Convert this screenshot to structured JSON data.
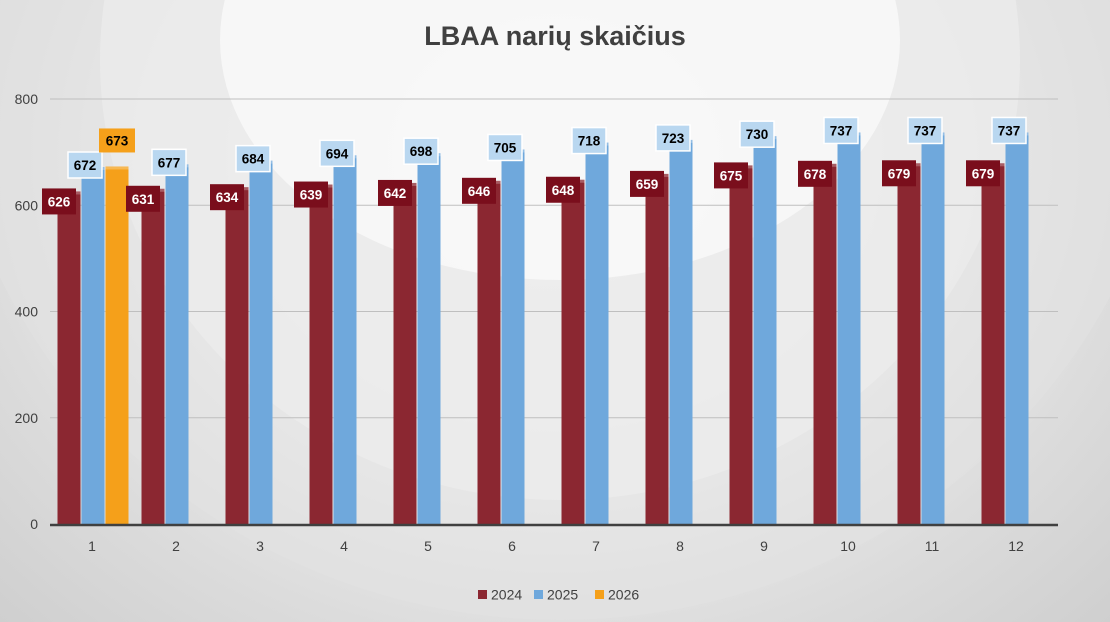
{
  "chart_data": {
    "type": "bar",
    "title": "LBAA narių skaičius",
    "xlabel": "",
    "ylabel": "",
    "categories": [
      "1",
      "2",
      "3",
      "4",
      "5",
      "6",
      "7",
      "8",
      "9",
      "10",
      "11",
      "12"
    ],
    "ylim": [
      0,
      800
    ],
    "yticks": [
      "0",
      "200",
      "400",
      "600",
      "800"
    ],
    "grid": true,
    "legend_position": "bottom",
    "series": [
      {
        "name": "2024",
        "color": "#8b2731",
        "label_bg": "#7a0e1c",
        "label_fg": "#ffffff",
        "values": [
          626,
          631,
          634,
          639,
          642,
          646,
          648,
          659,
          675,
          678,
          679,
          679
        ]
      },
      {
        "name": "2025",
        "color": "#6fa8dc",
        "label_bg": "#b9d7f0",
        "label_fg": "#000000",
        "values": [
          672,
          677,
          684,
          694,
          698,
          705,
          718,
          723,
          730,
          737,
          737,
          737
        ]
      },
      {
        "name": "2026",
        "color": "#f5a01a",
        "label_bg": "#f5a01a",
        "label_fg": "#000000",
        "values": [
          673,
          null,
          null,
          null,
          null,
          null,
          null,
          null,
          null,
          null,
          null,
          null
        ]
      }
    ]
  }
}
